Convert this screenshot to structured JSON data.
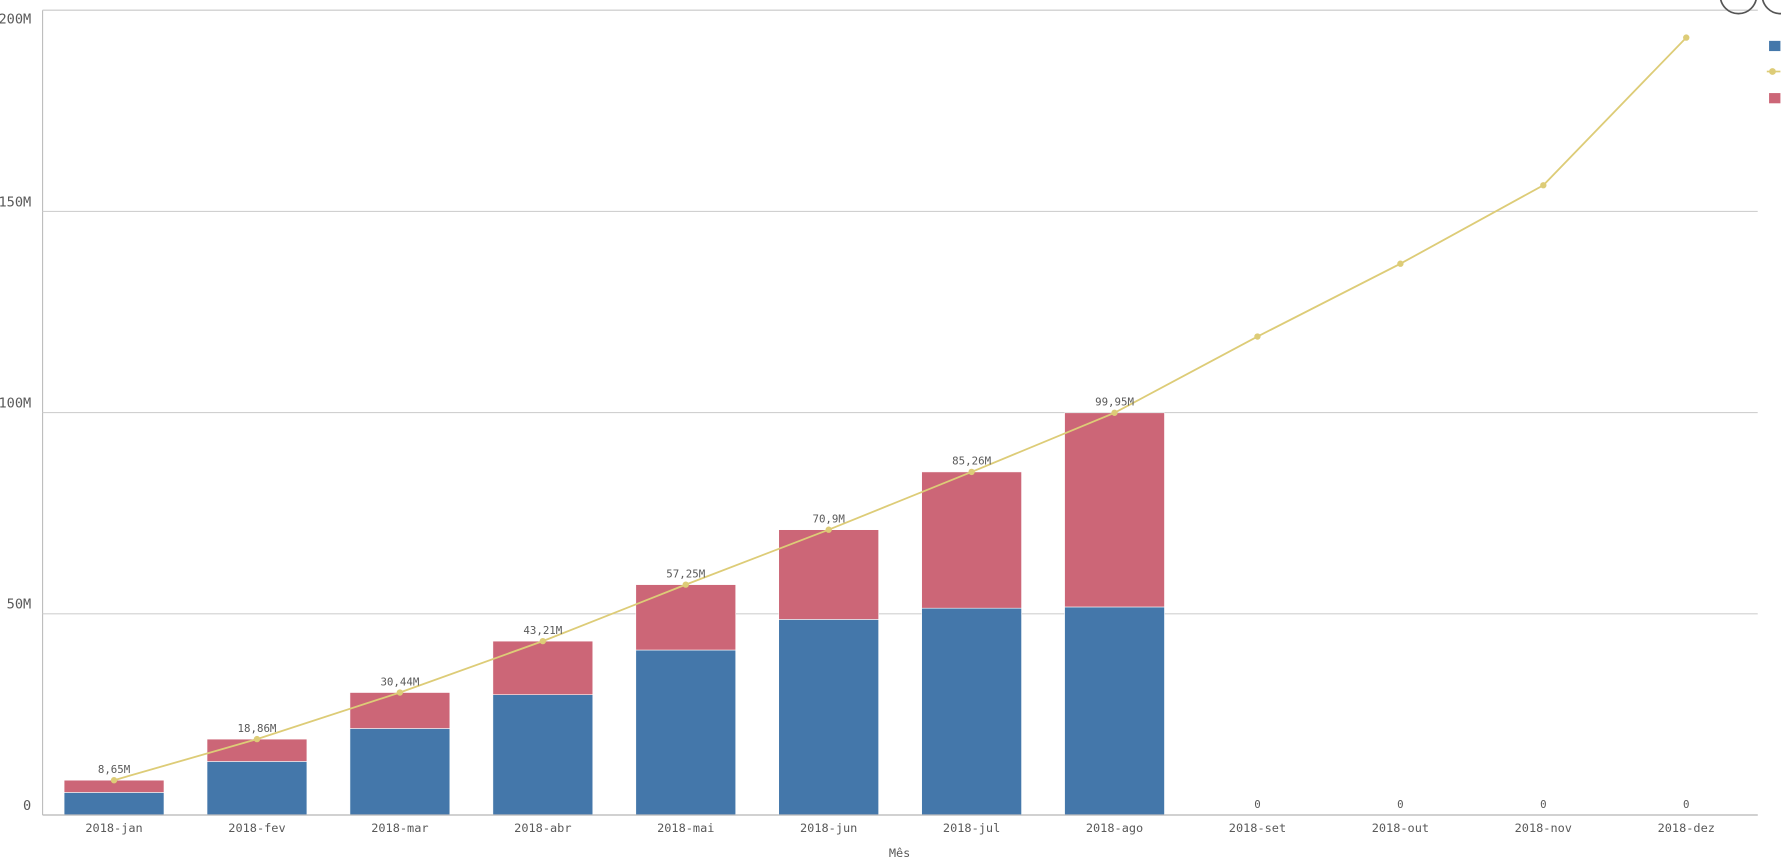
{
  "chart_data": {
    "type": "combo",
    "x_label": "Mês",
    "categories": [
      "2018-jan",
      "2018-fev",
      "2018-mar",
      "2018-abr",
      "2018-mai",
      "2018-jun",
      "2018-jul",
      "2018-ago",
      "2018-set",
      "2018-out",
      "2018-nov",
      "2018-dez"
    ],
    "series": [
      {
        "type": "bar",
        "color": "#4477aa",
        "values": [
          5.6,
          13.3,
          21.5,
          29.9,
          41.0,
          48.6,
          51.4,
          51.7,
          0,
          0,
          0,
          0
        ]
      },
      {
        "type": "bar",
        "color": "#cc6677",
        "values": [
          3.05,
          5.56,
          8.94,
          13.31,
          16.25,
          22.3,
          33.86,
          48.25,
          0,
          0,
          0,
          0
        ]
      },
      {
        "type": "line",
        "color": "#ddcc77",
        "values": [
          8.65,
          18.86,
          30.44,
          43.21,
          57.25,
          70.9,
          85.26,
          99.95,
          118.9,
          137.0,
          156.5,
          193.2
        ]
      }
    ],
    "totals": {
      "values": [
        8.65,
        18.86,
        30.44,
        43.21,
        57.25,
        70.9,
        85.26,
        99.95,
        0,
        0,
        0,
        0
      ],
      "value_labels": [
        "8,65M",
        "18,86M",
        "30,44M",
        "43,21M",
        "57,25M",
        "70,9M",
        "85,26M",
        "99,95M",
        "0",
        "0",
        "0",
        "0"
      ]
    },
    "ylim": [
      0,
      200
    ],
    "yticks": [
      0,
      {
        "value": 50,
        "label": "50M"
      },
      {
        "value": 100,
        "label": "100M"
      },
      {
        "value": 150,
        "label": "150M"
      },
      {
        "value": 200,
        "label": "200M"
      }
    ],
    "grid": true
  }
}
